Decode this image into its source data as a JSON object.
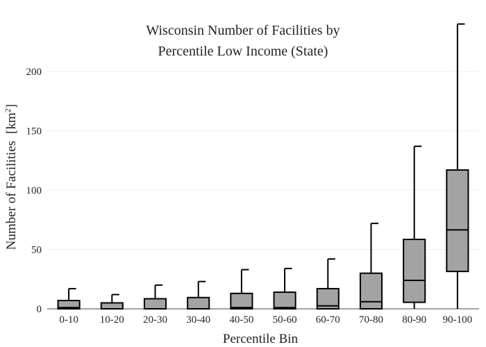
{
  "chart_data": {
    "type": "box",
    "title_lines": [
      "Wisconsin Number of Facilities by",
      "Percentile Low Income (State)"
    ],
    "xlabel": "Percentile Bin",
    "ylabel": "Number of Facilities",
    "ylabel_unit": "[km",
    "ylabel_unit_sup": "2",
    "ylabel_unit_close": "]",
    "ylim": [
      0,
      240
    ],
    "yticks": [
      0,
      50,
      100,
      150,
      200
    ],
    "grid": true,
    "legend": "none",
    "box_color": "#a3a3a3",
    "categories": [
      "0-10",
      "10-20",
      "20-30",
      "30-40",
      "40-50",
      "50-60",
      "60-70",
      "70-80",
      "80-90",
      "90-100"
    ],
    "boxes": [
      {
        "min": 0,
        "q1": 0,
        "median": 1,
        "q3": 7,
        "max": 17
      },
      {
        "min": 0,
        "q1": 0,
        "median": 0,
        "q3": 5,
        "max": 12
      },
      {
        "min": 0,
        "q1": 0,
        "median": 0,
        "q3": 8.5,
        "max": 20
      },
      {
        "min": 0,
        "q1": 0,
        "median": 0,
        "q3": 9.5,
        "max": 23
      },
      {
        "min": 0,
        "q1": 0,
        "median": 1,
        "q3": 13,
        "max": 33
      },
      {
        "min": 0,
        "q1": 0,
        "median": 1,
        "q3": 14,
        "max": 34
      },
      {
        "min": 0,
        "q1": 0,
        "median": 2.5,
        "q3": 17,
        "max": 42
      },
      {
        "min": 0,
        "q1": 0,
        "median": 6,
        "q3": 30,
        "max": 72
      },
      {
        "min": 0,
        "q1": 5.5,
        "median": 24,
        "q3": 58.5,
        "max": 137
      },
      {
        "min": 0,
        "q1": 31.5,
        "median": 66.5,
        "q3": 117,
        "max": 240
      }
    ]
  }
}
